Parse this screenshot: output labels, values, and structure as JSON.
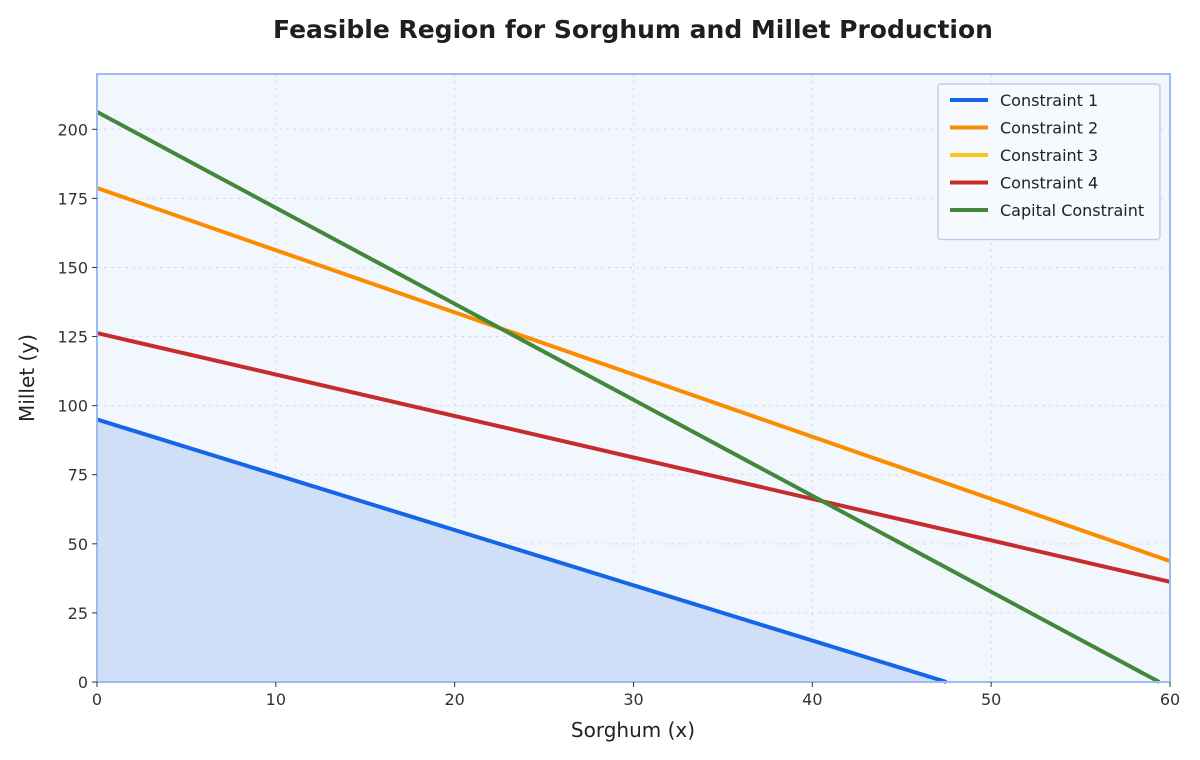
{
  "chart_data": {
    "type": "line",
    "title": "Feasible Region for Sorghum and Millet Production",
    "xlabel": "Sorghum (x)",
    "ylabel": "Millet (y)",
    "xlim": [
      0,
      60
    ],
    "ylim": [
      0,
      220
    ],
    "xticks": [
      0,
      10,
      20,
      30,
      40,
      50,
      60
    ],
    "yticks": [
      0,
      25,
      50,
      75,
      100,
      125,
      150,
      175,
      200
    ],
    "grid": true,
    "legend_position": "top-right",
    "colors": {
      "plot_background": "#f2f7fd",
      "plot_border": "#9dbcee",
      "feasible_fill": "#cfdff8"
    },
    "series": [
      {
        "name": "Constraint 1",
        "color": "#1565e8",
        "x": [
          0,
          47.5
        ],
        "y": [
          95,
          0
        ]
      },
      {
        "name": "Constraint 2",
        "color": "#fb8c00",
        "x": [
          0,
          60
        ],
        "y": [
          178.75,
          43.75
        ]
      },
      {
        "name": "Constraint 3",
        "color": "#f8c61f",
        "x": [],
        "y": []
      },
      {
        "name": "Constraint 4",
        "color": "#c62c2c",
        "x": [
          0,
          60
        ],
        "y": [
          126.25,
          36.25
        ]
      },
      {
        "name": "Capital Constraint",
        "color": "#43883a",
        "x": [
          0,
          59.4
        ],
        "y": [
          206.3,
          0
        ]
      }
    ],
    "feasible_region": {
      "x": [
        0,
        0,
        47.5
      ],
      "y": [
        0,
        95,
        0
      ]
    }
  }
}
